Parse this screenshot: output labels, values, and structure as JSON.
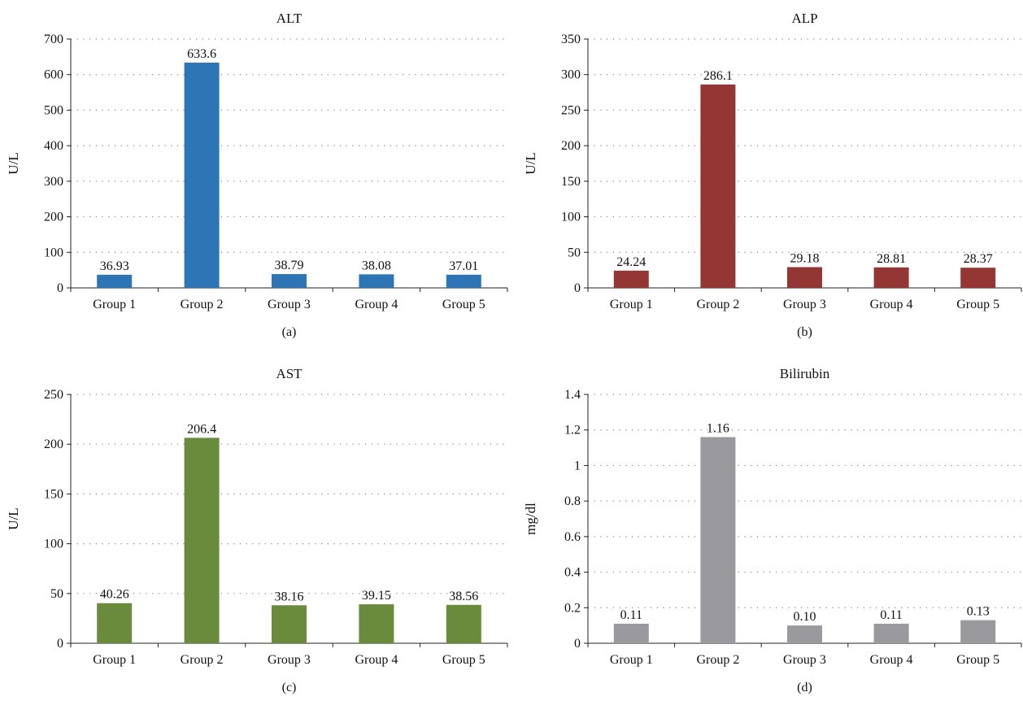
{
  "chart_data": [
    {
      "type": "bar",
      "title": "ALT",
      "ylabel": "U/L",
      "xlabel": "",
      "panel_label": "(a)",
      "categories": [
        "Group 1",
        "Group 2",
        "Group 3",
        "Group 4",
        "Group 5"
      ],
      "values": [
        36.93,
        633.6,
        38.79,
        38.08,
        37.01
      ],
      "value_labels": [
        "36.93",
        "633.6",
        "38.79",
        "38.08",
        "37.01"
      ],
      "ylim": [
        0,
        700
      ],
      "yticks": [
        0,
        100,
        200,
        300,
        400,
        500,
        600,
        700
      ],
      "ytick_labels": [
        "0",
        "100",
        "200",
        "300",
        "400",
        "500",
        "600",
        "700"
      ],
      "color": "#2e75b6",
      "grid": "dotted horizontal"
    },
    {
      "type": "bar",
      "title": "ALP",
      "ylabel": "U/L",
      "xlabel": "",
      "panel_label": "(b)",
      "categories": [
        "Group 1",
        "Group 2",
        "Group 3",
        "Group 4",
        "Group 5"
      ],
      "values": [
        24.24,
        286.1,
        29.18,
        28.81,
        28.37
      ],
      "value_labels": [
        "24.24",
        "286.1",
        "29.18",
        "28.81",
        "28.37"
      ],
      "ylim": [
        0,
        350
      ],
      "yticks": [
        0,
        50,
        100,
        150,
        200,
        250,
        300,
        350
      ],
      "ytick_labels": [
        "0",
        "50",
        "100",
        "150",
        "200",
        "250",
        "300",
        "350"
      ],
      "color": "#943634",
      "grid": "dotted horizontal"
    },
    {
      "type": "bar",
      "title": "AST",
      "ylabel": "U/L",
      "xlabel": "",
      "panel_label": "(c)",
      "categories": [
        "Group 1",
        "Group 2",
        "Group 3",
        "Group 4",
        "Group 5"
      ],
      "values": [
        40.26,
        206.4,
        38.16,
        39.15,
        38.56
      ],
      "value_labels": [
        "40.26",
        "206.4",
        "38.16",
        "39.15",
        "38.56"
      ],
      "ylim": [
        0,
        250
      ],
      "yticks": [
        0,
        50,
        100,
        150,
        200,
        250
      ],
      "ytick_labels": [
        "0",
        "50",
        "100",
        "150",
        "200",
        "250"
      ],
      "color": "#6a8a3c",
      "grid": "dotted horizontal"
    },
    {
      "type": "bar",
      "title": "Bilirubin",
      "ylabel": "mg/dl",
      "xlabel": "",
      "panel_label": "(d)",
      "categories": [
        "Group 1",
        "Group 2",
        "Group 3",
        "Group 4",
        "Group 5"
      ],
      "values": [
        0.11,
        1.16,
        0.1,
        0.11,
        0.13
      ],
      "value_labels": [
        "0.11",
        "1.16",
        "0.10",
        "0.11",
        "0.13"
      ],
      "ylim": [
        0,
        1.4
      ],
      "yticks": [
        0,
        0.2,
        0.4,
        0.6,
        0.8,
        1.0,
        1.2,
        1.4
      ],
      "ytick_labels": [
        "0",
        "0.2",
        "0.4",
        "0.6",
        "0.8",
        "1",
        "1.2",
        "1.4"
      ],
      "color": "#9a9a9e",
      "grid": "dotted horizontal"
    }
  ]
}
